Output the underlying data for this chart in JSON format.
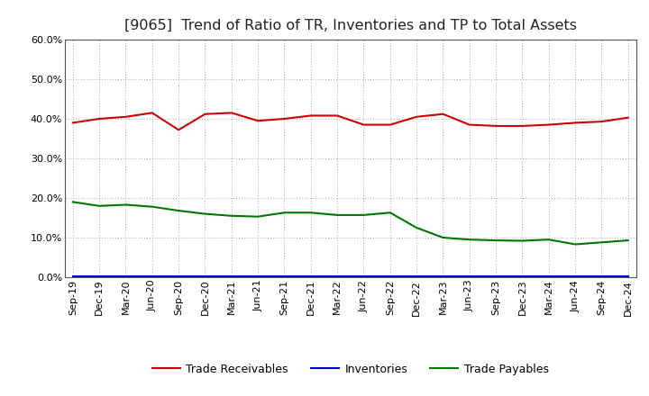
{
  "title": "[9065]  Trend of Ratio of TR, Inventories and TP to Total Assets",
  "x_labels": [
    "Sep-19",
    "Dec-19",
    "Mar-20",
    "Jun-20",
    "Sep-20",
    "Dec-20",
    "Mar-21",
    "Jun-21",
    "Sep-21",
    "Dec-21",
    "Mar-22",
    "Jun-22",
    "Sep-22",
    "Dec-22",
    "Mar-23",
    "Jun-23",
    "Sep-23",
    "Dec-23",
    "Mar-24",
    "Jun-24",
    "Sep-24",
    "Dec-24"
  ],
  "trade_receivables": [
    0.39,
    0.4,
    0.405,
    0.415,
    0.372,
    0.412,
    0.415,
    0.395,
    0.4,
    0.408,
    0.408,
    0.385,
    0.385,
    0.405,
    0.412,
    0.385,
    0.382,
    0.382,
    0.385,
    0.39,
    0.393,
    0.403
  ],
  "inventories": [
    0.003,
    0.003,
    0.003,
    0.003,
    0.003,
    0.003,
    0.003,
    0.003,
    0.003,
    0.003,
    0.003,
    0.003,
    0.003,
    0.003,
    0.003,
    0.003,
    0.003,
    0.003,
    0.003,
    0.003,
    0.003,
    0.003
  ],
  "trade_payables": [
    0.19,
    0.18,
    0.183,
    0.178,
    0.168,
    0.16,
    0.155,
    0.153,
    0.163,
    0.163,
    0.157,
    0.157,
    0.163,
    0.125,
    0.1,
    0.095,
    0.093,
    0.092,
    0.095,
    0.083,
    0.088,
    0.093
  ],
  "tr_color": "#cc0000",
  "inv_color": "#0000cc",
  "tp_color": "#007700",
  "bg_color": "#ffffff",
  "plot_bg_color": "#ffffff",
  "grid_color": "#aaaaaa",
  "ylim": [
    0.0,
    0.6
  ],
  "yticks": [
    0.0,
    0.1,
    0.2,
    0.3,
    0.4,
    0.5,
    0.6
  ],
  "legend_labels": [
    "Trade Receivables",
    "Inventories",
    "Trade Payables"
  ],
  "title_fontsize": 11.5,
  "label_fontsize": 9,
  "tick_fontsize": 8
}
